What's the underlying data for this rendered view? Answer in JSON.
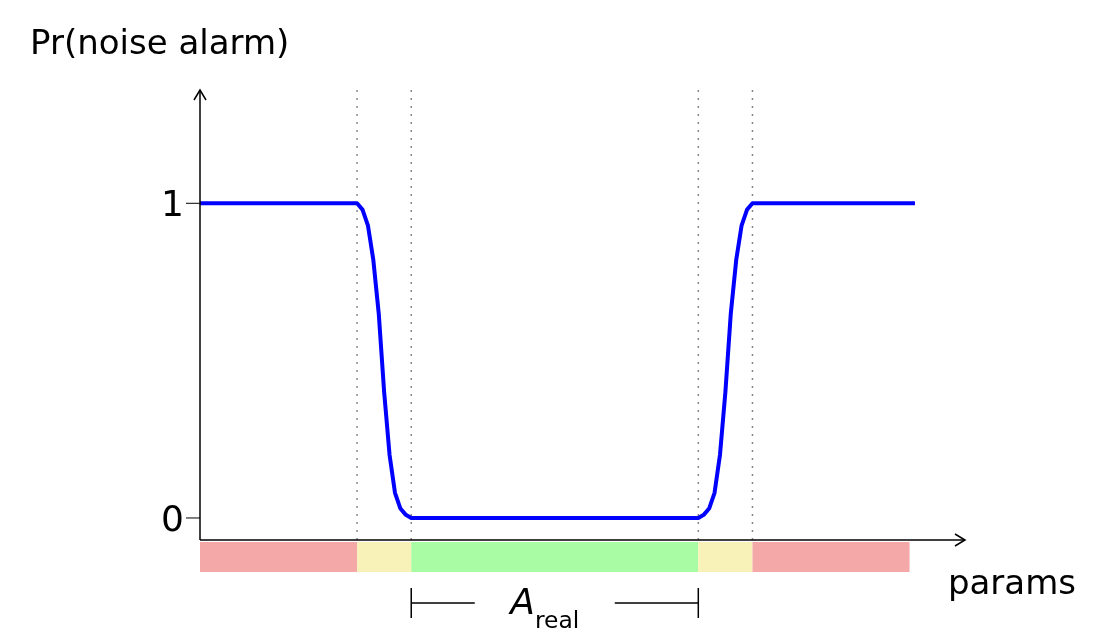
{
  "chart_data": {
    "type": "line",
    "ylabel": "Pr(noise alarm)",
    "xlabel": "params",
    "tick_labels": "y",
    "ylim": [
      -0.07,
      1.36
    ],
    "yticks": [
      0,
      1
    ],
    "grid": false,
    "legend": false,
    "marker": "none",
    "line_style": "solid",
    "categories": [
      null,
      null,
      null,
      null,
      null,
      null,
      null,
      null,
      null,
      null,
      null,
      null,
      null,
      null,
      null,
      null,
      null,
      null,
      null,
      null,
      null,
      null,
      null,
      null,
      null,
      null,
      null,
      null,
      null,
      null,
      null,
      null,
      null,
      null,
      null,
      null,
      null,
      null,
      null,
      null,
      null,
      null,
      null,
      null,
      null,
      null,
      null,
      null,
      null,
      null,
      null,
      null,
      null,
      null,
      null,
      null,
      null,
      null,
      null,
      null,
      null,
      null,
      null,
      null,
      null,
      null,
      null,
      null,
      null,
      null,
      null,
      null,
      null,
      null,
      null,
      null,
      null,
      null,
      null,
      null,
      null,
      null,
      null,
      null,
      null,
      null,
      null,
      null,
      null,
      null,
      null,
      null,
      null,
      null,
      null,
      null,
      null,
      null,
      null,
      null,
      null,
      null,
      null,
      null,
      null,
      null,
      null,
      null,
      null,
      null,
      null,
      null,
      null,
      null,
      null,
      null,
      null,
      null,
      null,
      null,
      null,
      null,
      null,
      null,
      null,
      null,
      null,
      null,
      null,
      null,
      null,
      null,
      null
    ],
    "series": [
      {
        "color": "#0000ff",
        "values": [
          1,
          1,
          1,
          1,
          1,
          1,
          1,
          1,
          1,
          1,
          1,
          1,
          1,
          1,
          1,
          1,
          1,
          1,
          1,
          1,
          1,
          1,
          1,
          1,
          1,
          1,
          1,
          1,
          1,
          1,
          0.98,
          0.93,
          0.82,
          0.65,
          0.4,
          0.2,
          0.08,
          0.03,
          0.01,
          0,
          0,
          0,
          0,
          0,
          0,
          0,
          0,
          0,
          0,
          0,
          0,
          0,
          0,
          0,
          0,
          0,
          0,
          0,
          0,
          0,
          0,
          0,
          0,
          0,
          0,
          0,
          0,
          0,
          0,
          0,
          0,
          0,
          0,
          0,
          0,
          0,
          0,
          0,
          0,
          0,
          0,
          0,
          0,
          0,
          0,
          0,
          0,
          0,
          0,
          0,
          0,
          0,
          0,
          0.01,
          0.03,
          0.08,
          0.2,
          0.4,
          0.65,
          0.82,
          0.93,
          0.98,
          1,
          1,
          1,
          1,
          1,
          1,
          1,
          1,
          1,
          1,
          1,
          1,
          1,
          1,
          1,
          1,
          1,
          1,
          1,
          1,
          1,
          1,
          1,
          1,
          1,
          1,
          1,
          1,
          1,
          1,
          1
        ]
      }
    ],
    "annotations": [
      "A$_{real}$"
    ]
  }
}
